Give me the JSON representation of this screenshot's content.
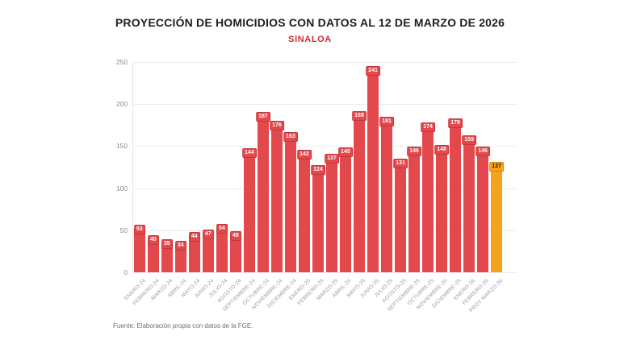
{
  "header": {
    "title": "PROYECCIÓN DE HOMICIDIOS CON DATOS AL 12 DE MARZO DE 2026",
    "subtitle": "SINALOA"
  },
  "footer": {
    "source": "Fuente: Elaboración propia con datos de la FGE."
  },
  "colors": {
    "bar": "#E2484C",
    "projection_bar": "#F5A31B",
    "subtitle_accent": "#D32B2E",
    "title_text": "#1E1E1E",
    "axis_text": "#8B8B8B",
    "gridline": "#ECECEC"
  },
  "chart_data": {
    "type": "bar",
    "title": "PROYECCIÓN DE HOMICIDIOS CON DATOS AL 12 DE MARZO DE 2026",
    "subtitle": "SINALOA",
    "categories": [
      "ENERO-24",
      "FEBRERO-24",
      "MARZO-24",
      "ABRIL-24",
      "MAYO-24",
      "JUNIO-24",
      "JULIO-24",
      "AGOSTO-24",
      "SEPTIEMBRE-24",
      "OCTUBRE-24",
      "NOVIEMBRE-24",
      "DICIEMBRE-24",
      "ENERO-25",
      "FEBRERO-25",
      "MARZO-25",
      "ABRIL-25",
      "MAYO-25",
      "JUNIO-25",
      "JULIO-25",
      "AGOSTO-25",
      "SEPTIEMBRE-25",
      "OCTUBRE-25",
      "NOVIEMBRE-25",
      "DICIEMBRE-25",
      "ENERO-26",
      "FEBRERO-26",
      "PROY MARZO-26"
    ],
    "values": [
      53,
      40,
      35,
      34,
      44,
      47,
      54,
      45,
      144,
      187,
      176,
      163,
      142,
      124,
      137,
      145,
      188,
      241,
      181,
      131,
      146,
      174,
      148,
      179,
      159,
      146,
      127
    ],
    "highlight_index": 26,
    "highlight_meaning": "projection",
    "xlabel": "",
    "ylabel": "",
    "ylim": [
      0,
      250
    ],
    "yticks": [
      0,
      50,
      100,
      150,
      200,
      250
    ],
    "grid": "horizontal",
    "legend": "none",
    "data_labels": "on",
    "source": "Fuente: Elaboración propia con datos de la FGE."
  }
}
